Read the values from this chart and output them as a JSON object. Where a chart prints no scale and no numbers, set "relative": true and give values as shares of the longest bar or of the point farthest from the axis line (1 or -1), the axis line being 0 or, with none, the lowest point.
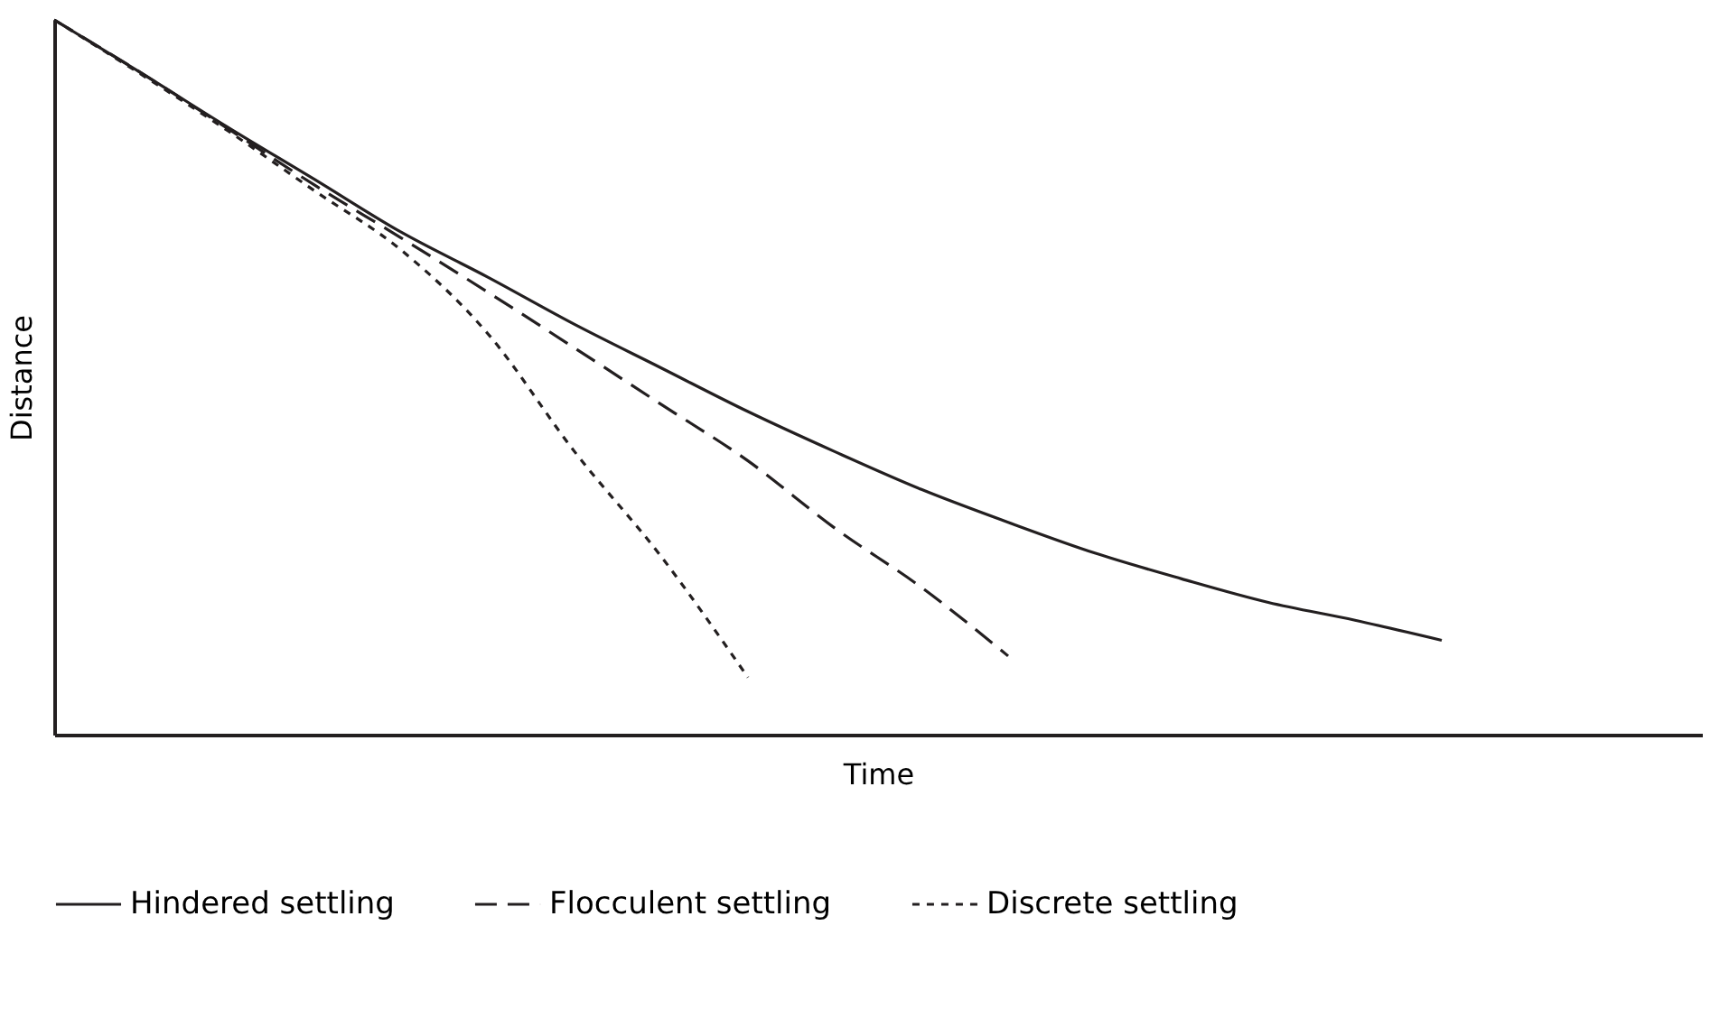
{
  "chart_data": {
    "type": "line",
    "xlabel": "Time",
    "ylabel": "Distance",
    "relative": true,
    "legend": "bottom",
    "marker": "none",
    "categories": [
      null,
      null,
      null,
      null,
      null,
      null,
      null,
      null,
      null,
      null,
      null,
      null,
      null,
      null,
      null,
      null,
      null,
      null,
      null,
      null
    ],
    "series": [
      {
        "name": "Hindered settling",
        "color": "#231f20",
        "line_style": "solid",
        "values": [
          1.0,
          0.926,
          0.85,
          0.777,
          0.703,
          0.64,
          0.574,
          0.513,
          0.452,
          0.396,
          0.343,
          0.297,
          0.254,
          0.218,
          0.185,
          0.16,
          0.132,
          null,
          null,
          null
        ]
      },
      {
        "name": "Flocculent settling",
        "color": "#231f20",
        "line_style": "dashed",
        "values": [
          1.0,
          0.926,
          0.848,
          0.769,
          0.695,
          0.619,
          0.541,
          0.462,
          0.383,
          0.289,
          0.206,
          0.11,
          null,
          null,
          null,
          null,
          null,
          null,
          null,
          null
        ]
      },
      {
        "name": "Discrete settling",
        "color": "#231f20",
        "line_style": "dotted",
        "values": [
          1.0,
          0.924,
          0.845,
          0.761,
          0.678,
          0.561,
          0.396,
          0.249,
          0.08,
          null,
          null,
          null,
          null,
          null,
          null,
          null,
          null,
          null,
          null,
          null
        ]
      }
    ]
  }
}
